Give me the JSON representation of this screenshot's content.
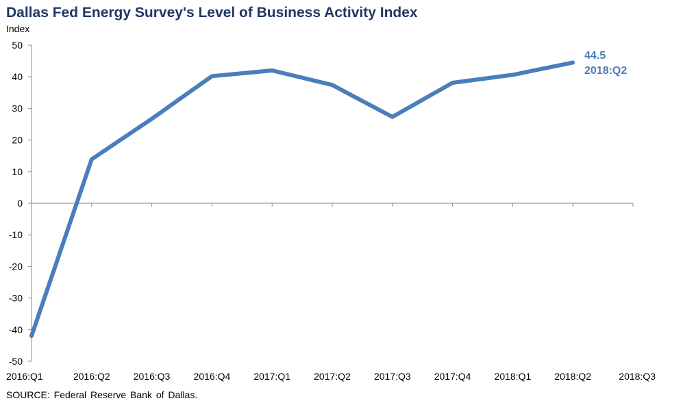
{
  "chart_data": {
    "type": "line",
    "title": "Dallas Fed Energy Survey's Level of Business Activity Index",
    "ylabel": "Index",
    "xlabel": "",
    "source": "SOURCE:  Federal Reserve  Bank of Dallas.",
    "categories": [
      "2016:Q1",
      "2016:Q2",
      "2016:Q3",
      "2016:Q4",
      "2017:Q1",
      "2017:Q2",
      "2017:Q3",
      "2017:Q4",
      "2018:Q1",
      "2018:Q2",
      "2018:Q3"
    ],
    "series": [
      {
        "name": "",
        "color": "#4a7ebb",
        "values": [
          -42.0,
          13.9,
          26.7,
          40.2,
          42.0,
          37.4,
          27.3,
          38.1,
          40.6,
          44.5,
          null
        ]
      }
    ],
    "ylim": [
      -50,
      50
    ],
    "yticks": [
      50,
      40,
      30,
      20,
      10,
      0,
      -10,
      -20,
      -30,
      -40,
      -50
    ],
    "annotation": {
      "value": "44.5",
      "period": "2018:Q2"
    },
    "grid": false,
    "legend": "none"
  }
}
